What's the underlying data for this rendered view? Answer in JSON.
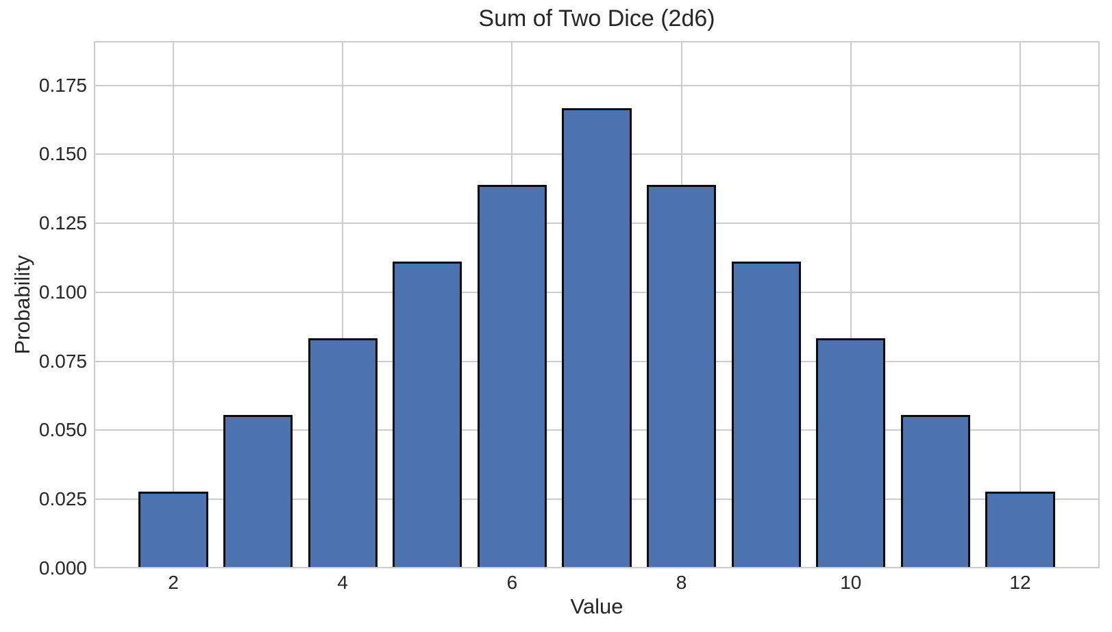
{
  "chart_data": {
    "type": "bar",
    "title": "Sum of Two Dice (2d6)",
    "xlabel": "Value",
    "ylabel": "Probability",
    "x": [
      2,
      3,
      4,
      5,
      6,
      7,
      8,
      9,
      10,
      11,
      12
    ],
    "values": [
      0.0278,
      0.0556,
      0.0833,
      0.1111,
      0.1389,
      0.1667,
      0.1389,
      0.1111,
      0.0833,
      0.0556,
      0.0278
    ],
    "bar_width": 0.82,
    "xticks": [
      2,
      4,
      6,
      8,
      10,
      12
    ],
    "ytick_labels": [
      "0.000",
      "0.025",
      "0.050",
      "0.075",
      "0.100",
      "0.125",
      "0.150",
      "0.175"
    ],
    "ytick_values": [
      0,
      0.025,
      0.05,
      0.075,
      0.1,
      0.125,
      0.15,
      0.175
    ],
    "xlim": [
      1.0615,
      12.9385
    ],
    "ylim": [
      0,
      0.191
    ],
    "grid": true,
    "legend": null,
    "colors": {
      "bar_fill": "#4C72B0",
      "bar_edge": "#0a0a0a",
      "grid": "#cccccc",
      "spine": "#cccccc",
      "text": "#262626",
      "background": "#ffffff"
    }
  }
}
